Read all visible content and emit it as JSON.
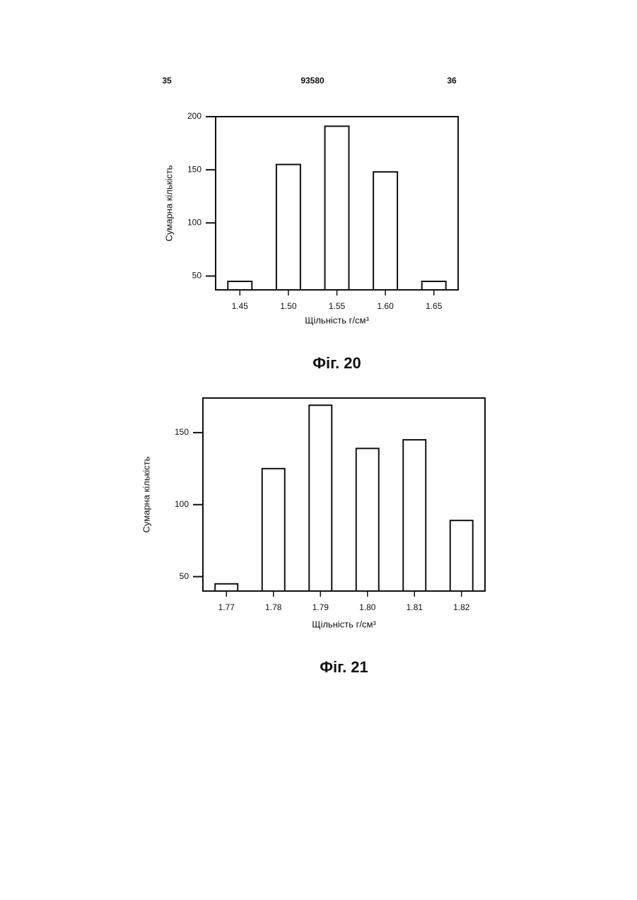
{
  "header": {
    "left": "35",
    "center": "93580",
    "right": "36"
  },
  "chart_data": [
    {
      "type": "bar",
      "caption": "Фіг. 20",
      "y_label": "Сумарна кількість",
      "x_label": "Щільність г/см³",
      "categories": [
        "1.45",
        "1.50",
        "1.55",
        "1.60",
        "1.65"
      ],
      "values": [
        45,
        155,
        191,
        148,
        45
      ],
      "color": "#ffffff",
      "ylim": [
        37,
        200
      ],
      "yticks": [
        50,
        100,
        150,
        200
      ],
      "grid": false
    },
    {
      "type": "bar",
      "caption": "Фіг. 21",
      "y_label": "Сумарна кількість",
      "x_label": "Щільність г/см³",
      "categories": [
        "1.77",
        "1.78",
        "1.79",
        "1.80",
        "1.81",
        "1.82"
      ],
      "values": [
        45,
        125,
        169,
        139,
        145,
        89
      ],
      "color": "#ffffff",
      "ylim": [
        40,
        174
      ],
      "yticks": [
        50,
        100,
        150
      ],
      "grid": false
    }
  ]
}
